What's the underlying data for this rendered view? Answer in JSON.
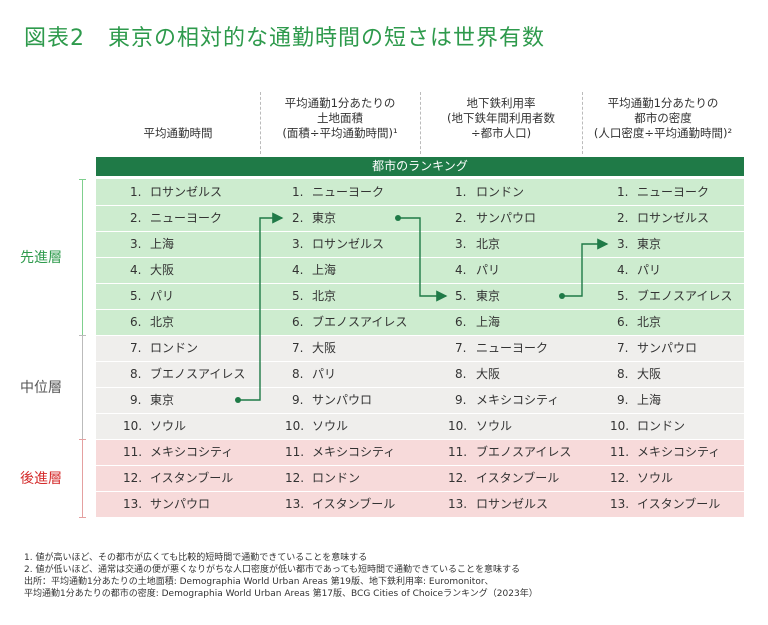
{
  "title": "図表2　東京の相対的な通勤時間の短さは世界有数",
  "columns": [
    {
      "header": [
        "平均通勤時間"
      ]
    },
    {
      "header": [
        "平均通勤1分あたりの",
        "土地面積",
        "(面積÷平均通勤時間)¹"
      ]
    },
    {
      "header": [
        "地下鉄利用率",
        "(地下鉄年間利用者数",
        "÷都市人口)"
      ]
    },
    {
      "header": [
        "平均通勤1分あたりの",
        "都市の密度",
        "(人口密度÷平均通勤時間)²"
      ]
    }
  ],
  "ranking_label": "都市のランキング",
  "tiers": [
    {
      "label": "先進層",
      "color": "#2e9a4c",
      "band": "#cdeccf",
      "line": "#7fcf8e"
    },
    {
      "label": "中位層",
      "color": "#555555",
      "band": "#efeeec",
      "line": "#bbbbbb"
    },
    {
      "label": "後進層",
      "color": "#d42a2a",
      "band": "#f7dada",
      "line": "#e4a0a0"
    }
  ],
  "chart_data": {
    "type": "table",
    "title": "図表2　東京の相対的な通勤時間の短さは世界有数",
    "columns": [
      "平均通勤時間",
      "平均通勤1分あたりの土地面積 (面積÷平均通勤時間)¹",
      "地下鉄利用率 (地下鉄年間利用者数÷都市人口)",
      "平均通勤1分あたりの都市の密度 (人口密度÷平均通勤時間)²"
    ],
    "ranks": [
      "1.",
      "2.",
      "3.",
      "4.",
      "5.",
      "6.",
      "7.",
      "8.",
      "9.",
      "10.",
      "11.",
      "12.",
      "13."
    ],
    "rankings": [
      [
        "ロサンゼルス",
        "ニューヨーク",
        "上海",
        "大阪",
        "パリ",
        "北京",
        "ロンドン",
        "ブエノスアイレス",
        "東京",
        "ソウル",
        "メキシコシティ",
        "イスタンブール",
        "サンパウロ"
      ],
      [
        "ニューヨーク",
        "東京",
        "ロサンゼルス",
        "上海",
        "北京",
        "ブエノスアイレス",
        "大阪",
        "パリ",
        "サンパウロ",
        "ソウル",
        "メキシコシティ",
        "ロンドン",
        "イスタンブール"
      ],
      [
        "ロンドン",
        "サンパウロ",
        "北京",
        "パリ",
        "東京",
        "上海",
        "ニューヨーク",
        "大阪",
        "メキシコシティ",
        "ソウル",
        "ブエノスアイレス",
        "イスタンブール",
        "ロサンゼルス"
      ],
      [
        "ニューヨーク",
        "ロサンゼルス",
        "東京",
        "パリ",
        "ブエノスアイレス",
        "北京",
        "サンパウロ",
        "大阪",
        "上海",
        "ロンドン",
        "メキシコシティ",
        "ソウル",
        "イスタンブール"
      ]
    ],
    "highlight_city": "東京",
    "highlight_ranks": [
      9,
      2,
      5,
      3
    ]
  },
  "colors": {
    "title": "#2e9a4c",
    "header_bar": "#1f7a47",
    "arrow": "#1f7a47"
  },
  "footnotes": [
    "1. 値が高いほど、その都市が広くても比較的短時間で通勤できていることを意味する",
    "2. 値が低いほど、通常は交通の便が悪くなりがちな人口密度が低い都市であっても短時間で通勤できていることを意味する",
    "出所：平均通勤1分あたりの土地面積: Demographia World Urban Areas 第19版、地下鉄利用率: Euromonitor、",
    "平均通勤1分あたりの都市の密度: Demographia World Urban Areas 第17版、BCG Cities of Choiceランキング（2023年）"
  ]
}
